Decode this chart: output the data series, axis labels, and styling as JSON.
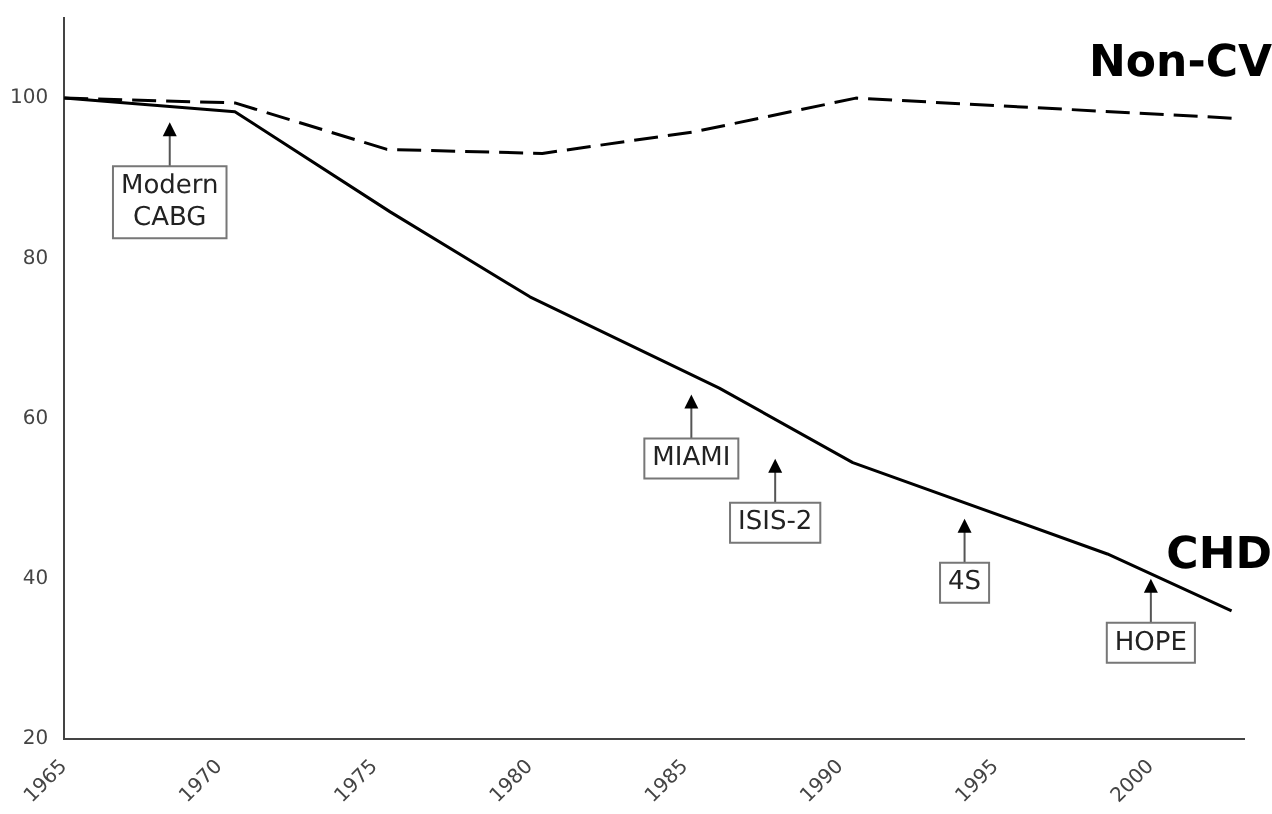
{
  "chart_data": {
    "type": "line",
    "xlim": [
      1965,
      2003
    ],
    "ylim": [
      20,
      110
    ],
    "xticks": [
      1965,
      1970,
      1975,
      1980,
      1985,
      1990,
      1995,
      2000
    ],
    "yticks": [
      20,
      40,
      60,
      80,
      100
    ],
    "grid": false,
    "legend": "right",
    "marker": "none",
    "series": [
      {
        "name": "Non-CV",
        "color": "#000000",
        "line_style": "dashed",
        "x": [
          1965,
          1970.5,
          1975.4,
          1980.4,
          1985.3,
          1990.5,
          2002.6
        ],
        "values": [
          100,
          99.4,
          93.6,
          93.1,
          95.8,
          100,
          97.5
        ]
      },
      {
        "name": "CHD",
        "color": "#000000",
        "line_style": "solid",
        "x": [
          1965,
          1970.5,
          1975.5,
          1980,
          1986.1,
          1990.4,
          1998.6,
          2002.6
        ],
        "values": [
          100,
          98.3,
          85.8,
          75.2,
          63.8,
          54.5,
          43.1,
          36.0
        ]
      }
    ],
    "annotations": [
      "Modern CABG",
      "MIAMI",
      "ISIS-2",
      "4S",
      "HOPE"
    ]
  }
}
